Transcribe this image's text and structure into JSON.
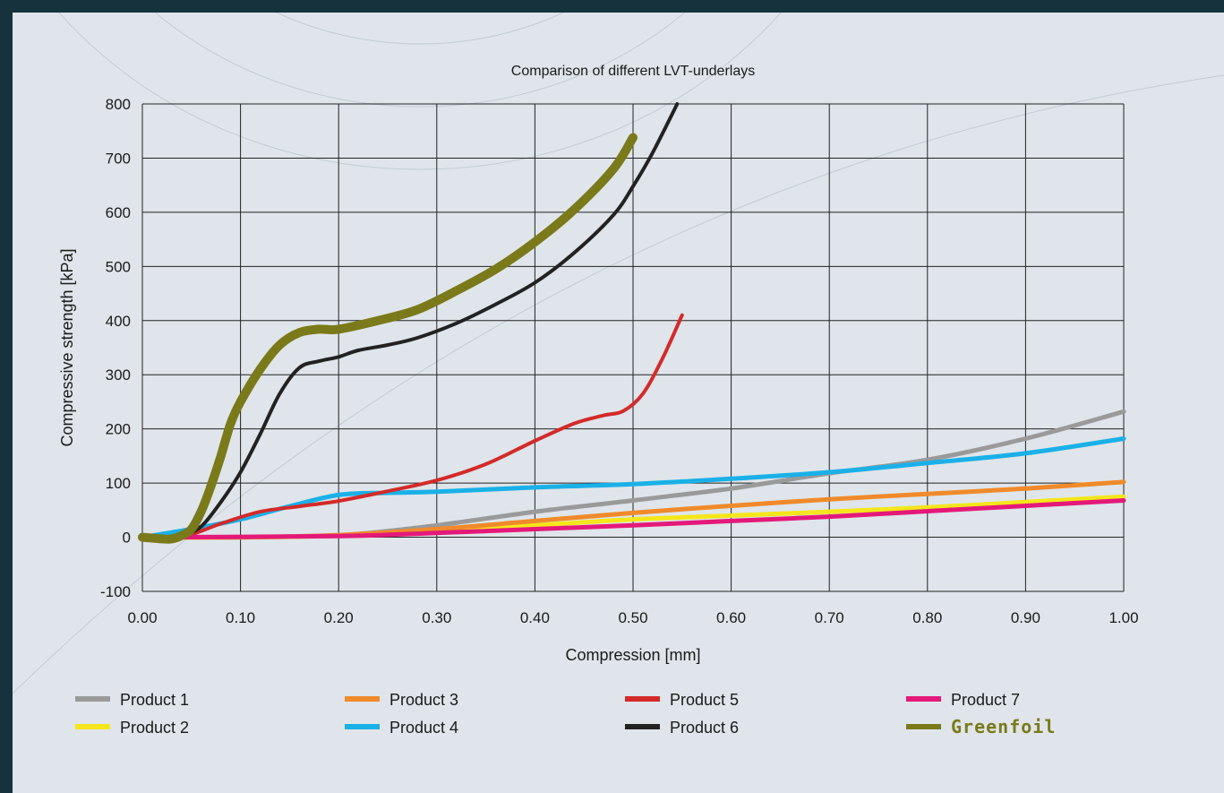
{
  "chart_data": {
    "type": "line",
    "title": "Comparison of different LVT-underlays",
    "xlabel": "Compression [mm]",
    "ylabel": "Compressive strength [kPa]",
    "xlim": [
      0,
      1
    ],
    "ylim": [
      -100,
      800
    ],
    "x_ticks": [
      "0.00",
      "0.10",
      "0.20",
      "0.30",
      "0.40",
      "0.50",
      "0.60",
      "0.70",
      "0.80",
      "0.90",
      "1.00"
    ],
    "y_ticks": [
      "800",
      "700",
      "600",
      "500",
      "400",
      "300",
      "200",
      "100",
      "0",
      "-100"
    ],
    "grid": true,
    "legend_position": "bottom",
    "series": [
      {
        "name": "Product 1",
        "color": "#9a9a9a",
        "width": 5,
        "legend_row": 0,
        "legend_col": 0,
        "points": [
          [
            0,
            0
          ],
          [
            0.1,
            0
          ],
          [
            0.18,
            2
          ],
          [
            0.22,
            6
          ],
          [
            0.3,
            22
          ],
          [
            0.4,
            47
          ],
          [
            0.5,
            68
          ],
          [
            0.6,
            90
          ],
          [
            0.7,
            118
          ],
          [
            0.8,
            143
          ],
          [
            0.9,
            182
          ],
          [
            1.0,
            232
          ]
        ]
      },
      {
        "name": "Product 2",
        "color": "#f5e61b",
        "width": 5,
        "legend_row": 1,
        "legend_col": 0,
        "points": [
          [
            0,
            0
          ],
          [
            0.1,
            0
          ],
          [
            0.2,
            3
          ],
          [
            0.3,
            12
          ],
          [
            0.4,
            22
          ],
          [
            0.5,
            33
          ],
          [
            0.6,
            40
          ],
          [
            0.7,
            47
          ],
          [
            0.8,
            55
          ],
          [
            0.9,
            65
          ],
          [
            1.0,
            75
          ]
        ]
      },
      {
        "name": "Product 3",
        "color": "#f08a2a",
        "width": 5,
        "legend_row": 0,
        "legend_col": 1,
        "points": [
          [
            0,
            0
          ],
          [
            0.1,
            0
          ],
          [
            0.2,
            4
          ],
          [
            0.3,
            15
          ],
          [
            0.4,
            30
          ],
          [
            0.5,
            45
          ],
          [
            0.6,
            58
          ],
          [
            0.7,
            70
          ],
          [
            0.8,
            80
          ],
          [
            0.9,
            90
          ],
          [
            1.0,
            102
          ]
        ]
      },
      {
        "name": "Product 4",
        "color": "#1ab0e8",
        "width": 5,
        "legend_row": 1,
        "legend_col": 1,
        "points": [
          [
            0,
            0
          ],
          [
            0.05,
            15
          ],
          [
            0.1,
            33
          ],
          [
            0.15,
            57
          ],
          [
            0.2,
            78
          ],
          [
            0.25,
            82
          ],
          [
            0.3,
            84
          ],
          [
            0.4,
            92
          ],
          [
            0.5,
            98
          ],
          [
            0.6,
            108
          ],
          [
            0.7,
            120
          ],
          [
            0.8,
            137
          ],
          [
            0.9,
            155
          ],
          [
            1.0,
            182
          ]
        ]
      },
      {
        "name": "Product 5",
        "color": "#d42a2a",
        "width": 4,
        "legend_row": 0,
        "legend_col": 2,
        "points": [
          [
            0.03,
            0
          ],
          [
            0.05,
            5
          ],
          [
            0.08,
            25
          ],
          [
            0.12,
            47
          ],
          [
            0.16,
            57
          ],
          [
            0.2,
            67
          ],
          [
            0.25,
            85
          ],
          [
            0.3,
            105
          ],
          [
            0.35,
            135
          ],
          [
            0.4,
            178
          ],
          [
            0.44,
            210
          ],
          [
            0.47,
            225
          ],
          [
            0.49,
            233
          ],
          [
            0.51,
            265
          ],
          [
            0.53,
            330
          ],
          [
            0.55,
            410
          ]
        ]
      },
      {
        "name": "Product 6",
        "color": "#222222",
        "width": 4,
        "legend_row": 1,
        "legend_col": 2,
        "points": [
          [
            0.04,
            0
          ],
          [
            0.06,
            20
          ],
          [
            0.08,
            65
          ],
          [
            0.1,
            120
          ],
          [
            0.12,
            190
          ],
          [
            0.14,
            265
          ],
          [
            0.16,
            313
          ],
          [
            0.18,
            325
          ],
          [
            0.2,
            333
          ],
          [
            0.22,
            345
          ],
          [
            0.25,
            355
          ],
          [
            0.28,
            368
          ],
          [
            0.32,
            395
          ],
          [
            0.36,
            430
          ],
          [
            0.4,
            470
          ],
          [
            0.44,
            525
          ],
          [
            0.48,
            595
          ],
          [
            0.5,
            648
          ],
          [
            0.52,
            710
          ],
          [
            0.545,
            800
          ]
        ]
      },
      {
        "name": "Product 7",
        "color": "#e4197a",
        "width": 5,
        "legend_row": 0,
        "legend_col": 3,
        "points": [
          [
            0,
            0
          ],
          [
            0.2,
            2
          ],
          [
            0.3,
            8
          ],
          [
            0.4,
            15
          ],
          [
            0.5,
            22
          ],
          [
            0.6,
            30
          ],
          [
            0.7,
            38
          ],
          [
            0.8,
            48
          ],
          [
            0.9,
            58
          ],
          [
            1.0,
            68
          ]
        ]
      },
      {
        "name": "Greenfoil",
        "color": "#7a7a1a",
        "width": 10,
        "legend_row": 1,
        "legend_col": 3,
        "points": [
          [
            0,
            0
          ],
          [
            0.02,
            -3
          ],
          [
            0.03,
            -3
          ],
          [
            0.04,
            3
          ],
          [
            0.05,
            15
          ],
          [
            0.06,
            48
          ],
          [
            0.07,
            95
          ],
          [
            0.08,
            150
          ],
          [
            0.09,
            210
          ],
          [
            0.1,
            250
          ],
          [
            0.12,
            310
          ],
          [
            0.14,
            355
          ],
          [
            0.16,
            378
          ],
          [
            0.18,
            384
          ],
          [
            0.2,
            384
          ],
          [
            0.24,
            400
          ],
          [
            0.28,
            420
          ],
          [
            0.32,
            455
          ],
          [
            0.36,
            495
          ],
          [
            0.4,
            545
          ],
          [
            0.44,
            605
          ],
          [
            0.48,
            680
          ],
          [
            0.5,
            738
          ]
        ]
      }
    ]
  }
}
